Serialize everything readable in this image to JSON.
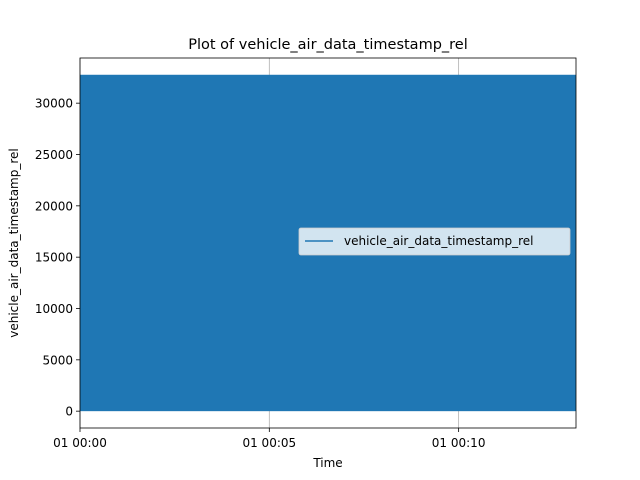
{
  "chart_data": {
    "type": "area",
    "title": "Plot of vehicle_air_data_timestamp_rel",
    "xlabel": "Time",
    "ylabel": "vehicle_air_data_timestamp_rel",
    "x_ticks": [
      "01 00:00",
      "01 00:05",
      "01 00:10"
    ],
    "y_ticks": [
      0,
      5000,
      10000,
      15000,
      20000,
      25000,
      30000
    ],
    "xlim_minutes": [
      0,
      13.1
    ],
    "ylim": [
      -1640,
      34400
    ],
    "grid": true,
    "legend_position": "center-right",
    "series": [
      {
        "name": "vehicle_air_data_timestamp_rel",
        "color": "#1f77b4",
        "min": 0,
        "max": 32767,
        "note": "dense oscillation between min and max filling the plot"
      }
    ]
  }
}
